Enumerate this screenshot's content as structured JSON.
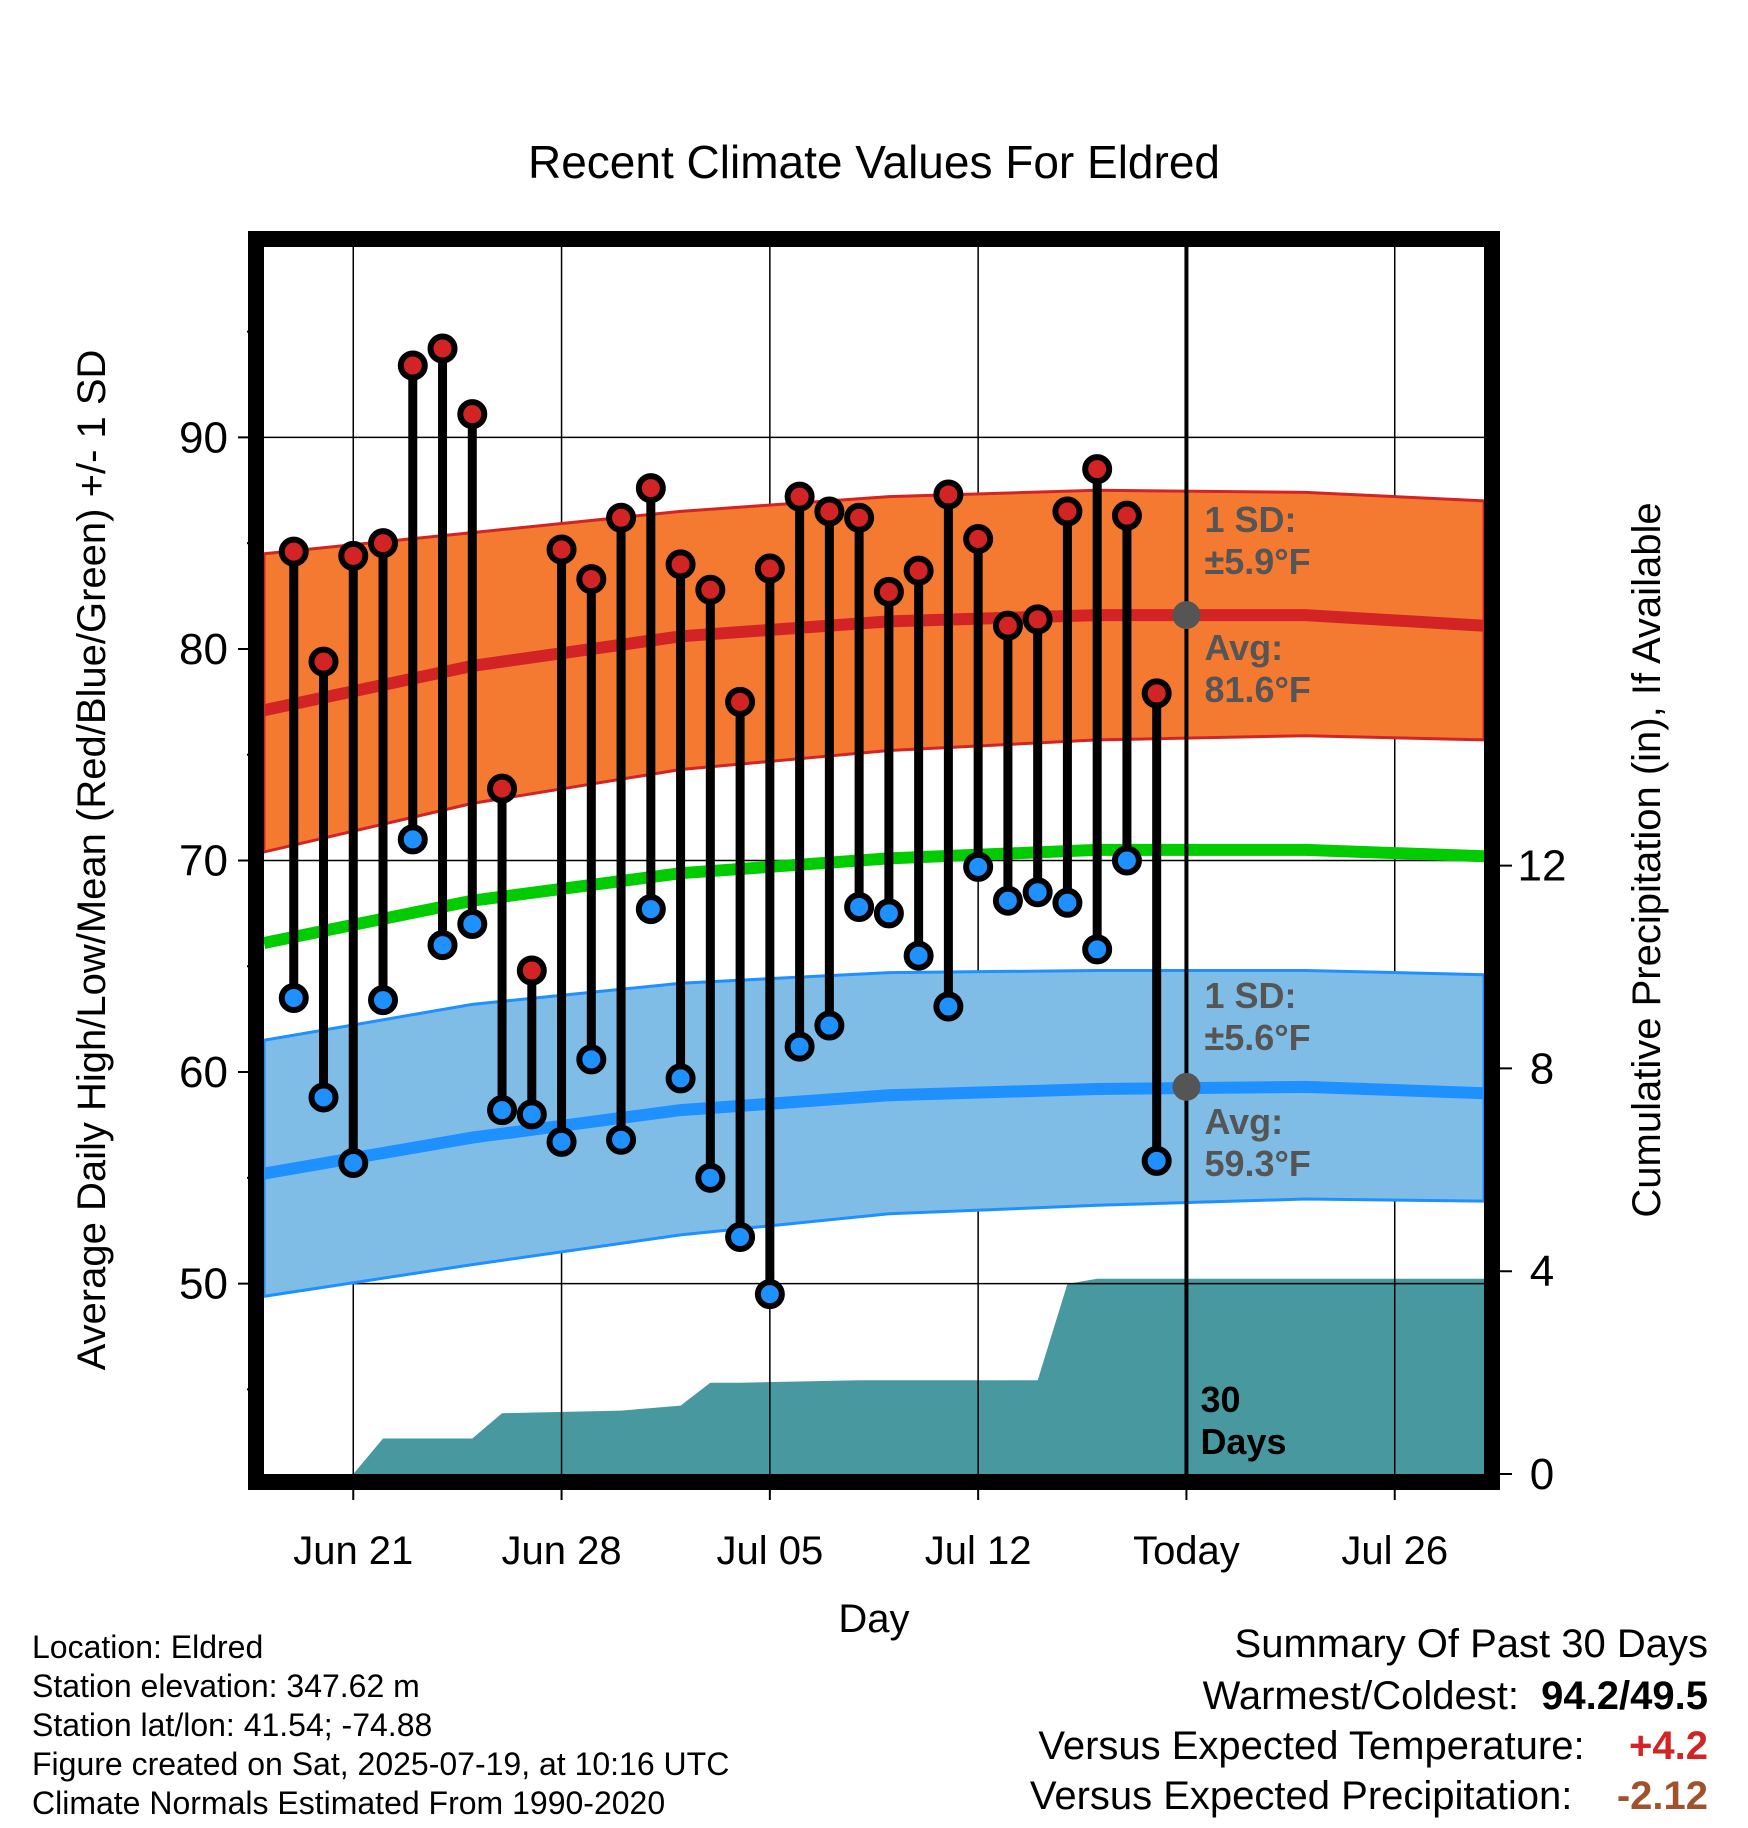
{
  "chart_data": {
    "type": "line",
    "title": "Recent Climate Values For Eldred",
    "xlabel": "Day",
    "ylabel": "Average Daily High/Low/Mean (Red/Blue/Green) +/- 1 SD",
    "y2label": "Cumulative Precipitation (in), If Available",
    "x_tick_labels": [
      "Jun 21",
      "Jun 28",
      "Jul 05",
      "Jul 12",
      "Today",
      "Jul 26"
    ],
    "x_range": [
      "2025-06-18",
      "2025-07-29"
    ],
    "today": "2025-07-19",
    "ylim": [
      41,
      99
    ],
    "y_ticks": [
      50,
      60,
      70,
      80,
      90
    ],
    "y2lim": [
      0,
      24.2
    ],
    "y2_ticks": [
      0,
      4,
      8,
      12
    ],
    "grid": true,
    "daily": {
      "dates": [
        "2025-06-19",
        "2025-06-20",
        "2025-06-21",
        "2025-06-22",
        "2025-06-23",
        "2025-06-24",
        "2025-06-25",
        "2025-06-26",
        "2025-06-27",
        "2025-06-28",
        "2025-06-29",
        "2025-06-30",
        "2025-07-01",
        "2025-07-02",
        "2025-07-03",
        "2025-07-04",
        "2025-07-05",
        "2025-07-06",
        "2025-07-07",
        "2025-07-08",
        "2025-07-09",
        "2025-07-10",
        "2025-07-11",
        "2025-07-12",
        "2025-07-13",
        "2025-07-14",
        "2025-07-15",
        "2025-07-16",
        "2025-07-17",
        "2025-07-18"
      ],
      "high": [
        84.6,
        79.4,
        84.4,
        85.0,
        93.4,
        94.2,
        91.1,
        73.4,
        64.8,
        84.7,
        83.3,
        86.2,
        87.6,
        84.0,
        82.8,
        77.5,
        83.8,
        87.2,
        86.5,
        86.2,
        82.7,
        83.7,
        87.3,
        85.2,
        81.1,
        81.4,
        86.5,
        88.5,
        86.3,
        77.9
      ],
      "low": [
        63.5,
        58.8,
        55.7,
        63.4,
        71.0,
        66.0,
        67.0,
        58.2,
        58.0,
        56.7,
        60.6,
        56.8,
        67.7,
        59.7,
        55.0,
        52.2,
        49.5,
        61.2,
        62.2,
        67.8,
        67.5,
        65.5,
        63.1,
        69.7,
        68.1,
        68.5,
        68.0,
        65.8,
        70.0,
        55.8
      ]
    },
    "normals": {
      "dates": [
        "2025-06-18",
        "2025-06-25",
        "2025-07-02",
        "2025-07-09",
        "2025-07-16",
        "2025-07-23",
        "2025-07-29"
      ],
      "avg_high": [
        77.1,
        79.2,
        80.6,
        81.3,
        81.6,
        81.6,
        81.1
      ],
      "high_sd_upper": [
        84.5,
        85.5,
        86.5,
        87.2,
        87.5,
        87.4,
        87.0
      ],
      "high_sd_lower": [
        70.4,
        72.7,
        74.3,
        75.2,
        75.7,
        75.9,
        75.7
      ],
      "avg_mean": [
        66.1,
        68.1,
        69.4,
        70.1,
        70.5,
        70.5,
        70.2
      ],
      "avg_low": [
        55.2,
        56.9,
        58.2,
        58.9,
        59.2,
        59.3,
        59.0
      ],
      "low_sd_upper": [
        61.5,
        63.2,
        64.2,
        64.7,
        64.8,
        64.8,
        64.6
      ],
      "low_sd_lower": [
        49.4,
        50.9,
        52.3,
        53.3,
        53.7,
        54.0,
        53.9
      ]
    },
    "precipitation": {
      "dates": [
        "2025-06-21",
        "2025-06-22",
        "2025-06-25",
        "2025-06-26",
        "2025-06-30",
        "2025-07-01",
        "2025-07-02",
        "2025-07-03",
        "2025-07-04",
        "2025-07-08",
        "2025-07-14",
        "2025-07-15",
        "2025-07-16",
        "2025-07-19",
        "2025-07-29"
      ],
      "cumulative": [
        0.0,
        0.7,
        0.7,
        1.2,
        1.25,
        1.3,
        1.35,
        1.8,
        1.8,
        1.85,
        1.85,
        3.75,
        3.85,
        3.85,
        3.85
      ]
    },
    "annotations": {
      "high_sd": "1 SD:\n±5.9°F",
      "high_avg": "Avg:\n81.6°F",
      "low_sd": "1 SD:\n±5.6°F",
      "low_avg": "Avg:\n59.3°F",
      "period": "30\nDays"
    },
    "colors": {
      "high_band": "#f47a31",
      "high_line": "#d22424",
      "low_band": "#80bde6",
      "low_line": "#1e90ff",
      "mean_line": "#00cc00",
      "precip": "#48999f",
      "high_dot": "#d22424",
      "low_dot": "#1e90ff",
      "annotation_text": "#555555"
    }
  },
  "footer": {
    "location": "Location: Eldred",
    "elevation": "Station elevation: 347.62 m",
    "latlon": "Station lat/lon: 41.54; -74.88",
    "created": "Figure created on Sat, 2025-07-19, at 10:16 UTC",
    "normals": "Climate Normals Estimated From 1990-2020"
  },
  "summary": {
    "title": "Summary Of Past 30 Days",
    "warmest_coldest_label": "Warmest/Coldest:",
    "warmest_coldest_value": "94.2/49.5",
    "temp_label": "Versus Expected Temperature:",
    "temp_value": "+4.2",
    "temp_color": "#d22424",
    "precip_label": "Versus Expected Precipitation:",
    "precip_value": "-2.12",
    "precip_color": "#a0522d"
  }
}
